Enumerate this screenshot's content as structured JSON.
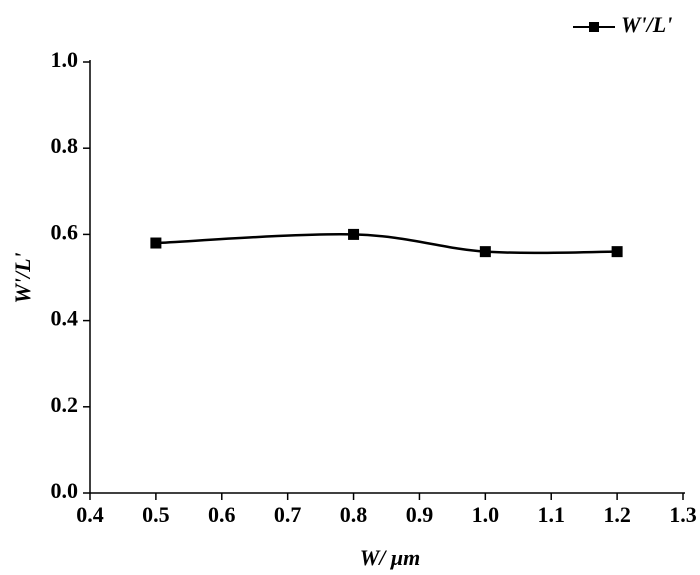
{
  "chart_data": {
    "type": "line",
    "x": [
      0.5,
      0.8,
      1.0,
      1.2
    ],
    "series": [
      {
        "name": "W'/L'",
        "color": "#000000",
        "values": [
          0.58,
          0.6,
          0.56,
          0.56
        ]
      }
    ],
    "xlabel": "W/ μm",
    "ylabel": "W'/L'",
    "xlim": [
      0.4,
      1.3
    ],
    "xticks": [
      0.4,
      0.5,
      0.6,
      0.7,
      0.8,
      0.9,
      {
        "value": 1,
        "label": "1.0"
      },
      1.1,
      1.2,
      1.3
    ],
    "ylim": [
      0,
      1
    ],
    "yticks": [
      {
        "value": 0,
        "label": "0.0"
      },
      0.2,
      0.4,
      0.6,
      0.8,
      {
        "value": 1,
        "label": "1.0"
      }
    ],
    "grid": false,
    "smooth": true,
    "legend": "top-right"
  }
}
